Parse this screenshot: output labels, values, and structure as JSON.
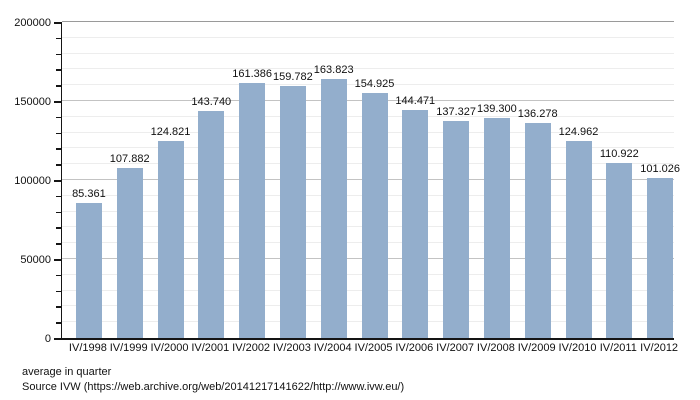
{
  "chart_data": {
    "type": "bar",
    "title": "",
    "categories": [
      "IV/1998",
      "IV/1999",
      "IV/2000",
      "IV/2001",
      "IV/2002",
      "IV/2003",
      "IV/2004",
      "IV/2005",
      "IV/2006",
      "IV/2007",
      "IV/2008",
      "IV/2009",
      "IV/2010",
      "IV/2011",
      "IV/2012"
    ],
    "values": [
      85361,
      107882,
      124821,
      143740,
      161386,
      159782,
      163823,
      154925,
      144471,
      137327,
      139300,
      136278,
      124962,
      110922,
      101026
    ],
    "value_labels": [
      "85.361",
      "107.882",
      "124.821",
      "143.740",
      "161.386",
      "159.782",
      "163.823",
      "154.925",
      "144.471",
      "137.327",
      "139.300",
      "136.278",
      "124.962",
      "110.922",
      "101.026"
    ],
    "xlabel": "",
    "ylabel": "",
    "ylim": [
      0,
      200000
    ],
    "y_major_step": 50000,
    "y_minor_step": 10000,
    "y_tick_labels": [
      "0",
      "50000",
      "100000",
      "150000",
      "200000"
    ],
    "grid": true,
    "legend_position": "none",
    "bar_color": "#93aecc"
  },
  "footer": {
    "note": "average in quarter",
    "source": "Source IVW (https://web.archive.org/web/20141217141622/http://www.ivw.eu/)"
  }
}
